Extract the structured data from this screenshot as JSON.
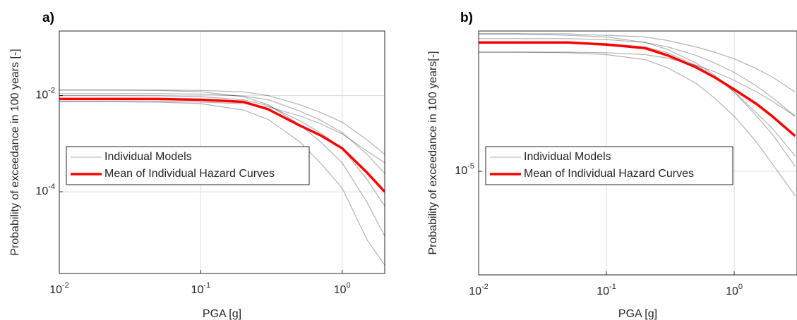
{
  "chart_data": [
    {
      "type": "line",
      "panel_label": "a)",
      "x_label": "PGA [g]",
      "y_label": "Probability of exceedance in 100 years [-]",
      "x_scale": "log",
      "y_scale": "log",
      "grid": true,
      "xlim": [
        0.01,
        2
      ],
      "ylim": [
        2e-06,
        0.22
      ],
      "xticks": [
        {
          "value": 0.01,
          "label": "10",
          "exponent": "-2"
        },
        {
          "value": 0.1,
          "label": "10",
          "exponent": "-1"
        },
        {
          "value": 1,
          "label": "10",
          "exponent": "0"
        }
      ],
      "yticks": [
        {
          "value": 0.0001,
          "label": "10",
          "exponent": "-4"
        },
        {
          "value": 0.01,
          "label": "10",
          "exponent": "-2"
        }
      ],
      "x": [
        0.01,
        0.02,
        0.05,
        0.1,
        0.2,
        0.3,
        0.5,
        0.7,
        1,
        1.5,
        2
      ],
      "series": [
        {
          "name": "Individual Models",
          "color": "#000000",
          "opacity": 0.3,
          "curves": [
            [
              0.013,
              0.013,
              0.013,
              0.0128,
              0.012,
              0.01,
              0.0065,
              0.0045,
              0.0028,
              0.0012,
              0.0006
            ],
            [
              0.013,
              0.013,
              0.0128,
              0.012,
              0.0095,
              0.0065,
              0.0025,
              0.0011,
              0.0004,
              6e-05,
              1.2e-05
            ],
            [
              0.0075,
              0.0075,
              0.0075,
              0.0073,
              0.0068,
              0.0058,
              0.0038,
              0.0026,
              0.0016,
              0.0007,
              0.0004
            ],
            [
              0.0075,
              0.0075,
              0.0073,
              0.0068,
              0.005,
              0.0032,
              0.0011,
              0.0004,
              0.00012,
              1e-05,
              3e-06
            ],
            [
              0.01,
              0.01,
              0.0099,
              0.0095,
              0.0082,
              0.0062,
              0.003,
              0.0017,
              0.0008,
              0.00018,
              5e-05
            ],
            [
              0.011,
              0.011,
              0.011,
              0.0107,
              0.0098,
              0.0082,
              0.0048,
              0.0031,
              0.0017,
              0.0006,
              0.00024
            ]
          ]
        },
        {
          "name": "Mean of Individual Hazard Curves",
          "color": "#ff0000",
          "values": [
            0.0085,
            0.0085,
            0.0085,
            0.0082,
            0.0074,
            0.0052,
            0.0024,
            0.0015,
            0.0008,
            0.00025,
            0.0001
          ]
        }
      ]
    },
    {
      "type": "line",
      "panel_label": "b)",
      "x_label": "PGA [g]",
      "y_label": "Probability of exceedance in 100 years[-]",
      "x_scale": "log",
      "y_scale": "log",
      "grid": true,
      "xlim": [
        0.01,
        3.1
      ],
      "ylim": [
        2e-07,
        0.002
      ],
      "xticks": [
        {
          "value": 0.01,
          "label": "10",
          "exponent": "-2"
        },
        {
          "value": 0.1,
          "label": "10",
          "exponent": "-1"
        },
        {
          "value": 1,
          "label": "10",
          "exponent": "0"
        }
      ],
      "yticks": [
        {
          "value": 1e-05,
          "label": "10",
          "exponent": "-5"
        }
      ],
      "x": [
        0.01,
        0.02,
        0.05,
        0.1,
        0.2,
        0.3,
        0.5,
        0.7,
        1,
        1.5,
        2,
        3
      ],
      "series": [
        {
          "name": "Individual Models",
          "color": "#000000",
          "opacity": 0.3,
          "curves": [
            [
              0.0018,
              0.0018,
              0.0018,
              0.0017,
              0.0016,
              0.0014,
              0.0011,
              0.0009,
              0.0007,
              0.00048,
              0.00035,
              0.0002
            ],
            [
              0.0018,
              0.0018,
              0.0017,
              0.0016,
              0.0013,
              0.001,
              0.0006,
              0.00038,
              0.0002,
              8e-05,
              4e-05,
              1.2e-05
            ],
            [
              0.0009,
              0.0009,
              0.0009,
              0.00088,
              0.00082,
              0.00072,
              0.00055,
              0.00043,
              0.00031,
              0.0002,
              0.00014,
              8e-05
            ],
            [
              0.0009,
              0.0009,
              0.00088,
              0.00082,
              0.00068,
              0.0005,
              0.00028,
              0.00016,
              8e-05,
              3e-05,
              1.3e-05,
              4e-06
            ],
            [
              0.0013,
              0.0013,
              0.0013,
              0.00125,
              0.0011,
              0.00088,
              0.00055,
              0.00036,
              0.0002,
              9e-05,
              5e-05,
              1.8e-05
            ],
            [
              0.0015,
              0.0015,
              0.0015,
              0.00145,
              0.0013,
              0.0011,
              0.0008,
              0.0006,
              0.00042,
              0.00025,
              0.00016,
              8e-05
            ]
          ]
        },
        {
          "name": "Mean of Individual Hazard Curves",
          "color": "#ff0000",
          "values": [
            0.0013,
            0.0013,
            0.0013,
            0.0012,
            0.00105,
            0.0008,
            0.00051,
            0.00035,
            0.00022,
            0.000127,
            7.9e-05,
            3.8e-05
          ]
        }
      ]
    }
  ]
}
